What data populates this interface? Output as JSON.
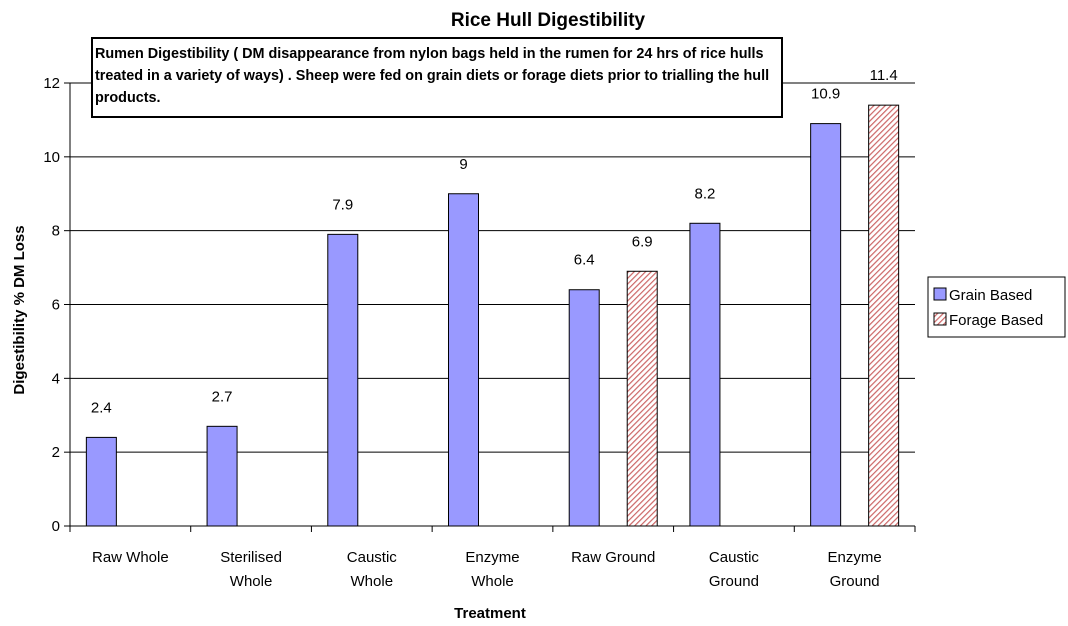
{
  "chart_data": {
    "type": "bar",
    "title": "Rice Hull Digestibility",
    "annotation": "Rumen Digestibility ( DM disappearance from nylon bags held in the rumen for 24 hrs of rice hulls treated in a variety of ways) . Sheep were fed on grain diets or forage diets prior to trialling the hull products.",
    "xlabel": "Treatment",
    "ylabel": "Digestibility % DM Loss",
    "ylim": [
      0,
      12
    ],
    "yticks": [
      "0",
      "2",
      "4",
      "6",
      "8",
      "10",
      "12"
    ],
    "categories": [
      [
        "Raw Whole"
      ],
      [
        "Sterilised",
        "Whole"
      ],
      [
        "Caustic",
        "Whole"
      ],
      [
        "Enzyme",
        "Whole"
      ],
      [
        "Raw Ground"
      ],
      [
        "Caustic",
        "Ground"
      ],
      [
        "Enzyme",
        "Ground"
      ]
    ],
    "series": [
      {
        "name": "Grain Based",
        "color": "#9999ff",
        "pattern": "solid",
        "values": [
          2.4,
          2.7,
          7.9,
          9,
          6.4,
          8.2,
          10.9
        ],
        "labels": [
          "2.4",
          "2.7",
          "7.9",
          "9",
          "6.4",
          "8.2",
          "10.9"
        ]
      },
      {
        "name": "Forage Based",
        "color": "#cc9999",
        "pattern": "diagonal-hatch",
        "values": [
          null,
          null,
          null,
          null,
          6.9,
          null,
          11.4
        ],
        "labels": [
          "",
          "",
          "",
          "",
          "6.9",
          "",
          "11.4"
        ]
      }
    ],
    "grid": true,
    "legend": "right"
  }
}
